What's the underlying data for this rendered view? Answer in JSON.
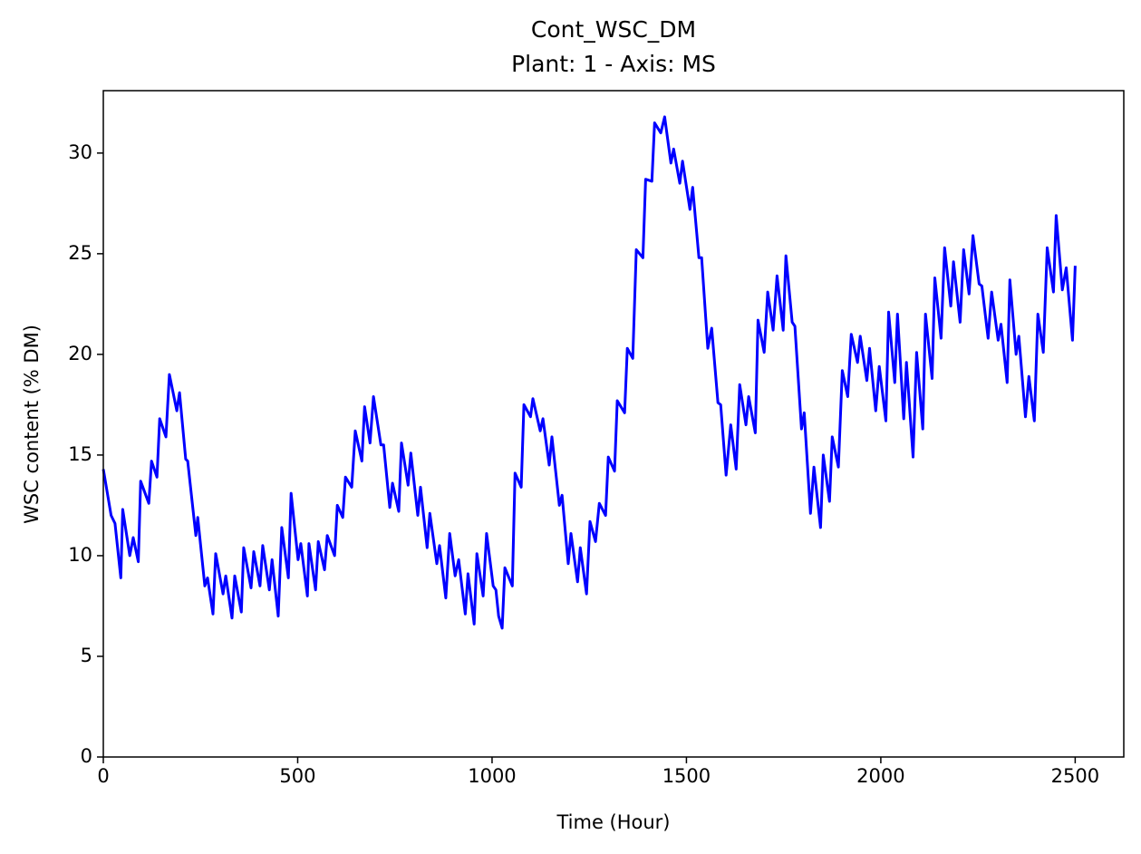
{
  "chart_data": {
    "type": "line",
    "title": "Cont_WSC_DM",
    "subtitle": "Plant: 1 - Axis: MS",
    "x_label": "Time (Hour)",
    "y_label": "WSC content (% DM)",
    "xlim": [
      0,
      2625
    ],
    "ylim": [
      0,
      33.1
    ],
    "xticks": [
      0,
      500,
      1000,
      1500,
      2000,
      2500
    ],
    "yticks": [
      0,
      5,
      10,
      15,
      20,
      25,
      30
    ],
    "grid": false,
    "x": [
      0,
      20,
      30,
      45,
      50,
      68,
      77,
      90,
      96,
      117,
      124,
      138,
      145,
      161,
      170,
      189,
      196,
      212,
      217,
      238,
      243,
      261,
      268,
      282,
      289,
      308,
      315,
      331,
      338,
      355,
      361,
      380,
      387,
      403,
      410,
      427,
      434,
      450,
      459,
      476,
      483,
      501,
      508,
      525,
      529,
      546,
      553,
      569,
      576,
      595,
      602,
      616,
      623,
      639,
      648,
      665,
      672,
      686,
      695,
      714,
      721,
      737,
      744,
      760,
      767,
      784,
      791,
      809,
      816,
      833,
      840,
      858,
      865,
      881,
      891,
      905,
      914,
      931,
      938,
      954,
      961,
      977,
      986,
      1003,
      1010,
      1017,
      1026,
      1033,
      1052,
      1059,
      1075,
      1082,
      1099,
      1105,
      1124,
      1131,
      1147,
      1154,
      1173,
      1180,
      1196,
      1203,
      1220,
      1227,
      1243,
      1252,
      1266,
      1276,
      1292,
      1299,
      1315,
      1322,
      1341,
      1348,
      1362,
      1371,
      1388,
      1395,
      1411,
      1418,
      1434,
      1444,
      1460,
      1467,
      1483,
      1490,
      1509,
      1516,
      1532,
      1539,
      1555,
      1565,
      1581,
      1588,
      1602,
      1614,
      1628,
      1637,
      1653,
      1660,
      1677,
      1684,
      1700,
      1709,
      1723,
      1733,
      1749,
      1756,
      1772,
      1779,
      1796,
      1803,
      1819,
      1828,
      1845,
      1852,
      1868,
      1875,
      1891,
      1901,
      1915,
      1924,
      1940,
      1947,
      1964,
      1971,
      1987,
      1996,
      2013,
      2020,
      2036,
      2043,
      2059,
      2066,
      2083,
      2092,
      2108,
      2115,
      2132,
      2139,
      2155,
      2164,
      2180,
      2187,
      2204,
      2213,
      2227,
      2237,
      2253,
      2260,
      2276,
      2285,
      2302,
      2309,
      2325,
      2332,
      2348,
      2355,
      2372,
      2381,
      2395,
      2404,
      2418,
      2428,
      2444,
      2451,
      2467,
      2477,
      2493,
      2500
    ],
    "series": [
      {
        "name": "Cont_WSC_DM",
        "color": "#0000ff",
        "values": [
          14.3,
          12.0,
          11.6,
          8.9,
          12.3,
          10.0,
          10.9,
          9.7,
          13.7,
          12.6,
          14.7,
          13.9,
          16.8,
          15.9,
          19.0,
          17.2,
          18.1,
          14.8,
          14.7,
          11.0,
          11.9,
          8.5,
          8.9,
          7.1,
          10.1,
          8.1,
          9.0,
          6.9,
          9.0,
          7.2,
          10.4,
          8.4,
          10.2,
          8.5,
          10.5,
          8.3,
          9.8,
          7.0,
          11.4,
          8.9,
          13.1,
          9.8,
          10.6,
          8.0,
          10.6,
          8.3,
          10.7,
          9.3,
          11.0,
          10.0,
          12.5,
          11.9,
          13.9,
          13.4,
          16.2,
          14.7,
          17.4,
          15.6,
          17.9,
          15.5,
          15.5,
          12.4,
          13.6,
          12.2,
          15.6,
          13.5,
          15.1,
          12.0,
          13.4,
          10.4,
          12.1,
          9.6,
          10.5,
          7.9,
          11.1,
          9.0,
          9.8,
          7.1,
          9.1,
          6.6,
          10.1,
          8.0,
          11.1,
          8.5,
          8.3,
          7.0,
          6.4,
          9.4,
          8.5,
          14.1,
          13.4,
          17.5,
          16.9,
          17.8,
          16.2,
          16.8,
          14.5,
          15.9,
          12.5,
          13.0,
          9.6,
          11.1,
          8.7,
          10.4,
          8.1,
          11.7,
          10.7,
          12.6,
          12.0,
          14.9,
          14.2,
          17.7,
          17.1,
          20.3,
          19.8,
          25.2,
          24.8,
          28.7,
          28.6,
          31.5,
          31.0,
          31.8,
          29.5,
          30.2,
          28.5,
          29.6,
          27.2,
          28.3,
          24.8,
          24.8,
          20.3,
          21.3,
          17.6,
          17.5,
          14.0,
          16.5,
          14.3,
          18.5,
          16.5,
          17.9,
          16.1,
          21.7,
          20.1,
          23.1,
          21.2,
          23.9,
          21.2,
          24.9,
          21.6,
          21.4,
          16.3,
          17.1,
          12.1,
          14.4,
          11.4,
          15.0,
          12.7,
          15.9,
          14.4,
          19.2,
          17.9,
          21.0,
          19.6,
          20.9,
          18.7,
          20.3,
          17.2,
          19.4,
          16.7,
          22.1,
          18.6,
          22.0,
          16.8,
          19.6,
          14.9,
          20.1,
          16.3,
          22.0,
          18.8,
          23.8,
          20.8,
          25.3,
          22.4,
          24.6,
          21.6,
          25.2,
          23.0,
          25.9,
          23.5,
          23.4,
          20.8,
          23.1,
          20.7,
          21.5,
          18.6,
          23.7,
          20.0,
          20.9,
          16.9,
          18.9,
          16.7,
          22.0,
          20.1,
          25.3,
          23.1,
          26.9,
          23.2,
          24.3,
          20.7,
          24.4
        ]
      }
    ]
  }
}
